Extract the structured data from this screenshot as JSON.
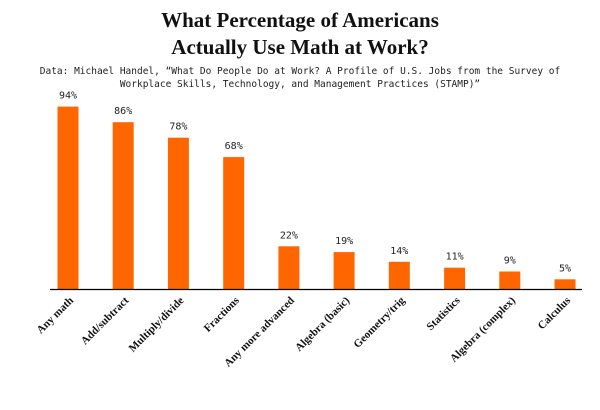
{
  "header": {
    "title_line_1": "What Percentage of Americans",
    "title_line_2": "Actually Use Math at Work?",
    "source_line_1": "Data: Michael Handel, “What Do People Do at Work? A Profile of U.S. Jobs from the Survey of",
    "source_line_2": "Workplace Skills, Technology, and Management Practices (STAMP)”"
  },
  "chart_data": {
    "type": "bar",
    "title": "What Percentage of Americans Actually Use Math at Work?",
    "subtitle": "Data: Michael Handel, “What Do People Do at Work? A Profile of U.S. Jobs from the Survey of Workplace Skills, Technology, and Management Practices (STAMP)”",
    "categories": [
      "Any math",
      "Add/subtract",
      "Multiply/divide",
      "Fractions",
      "Any more advanced",
      "Algebra (basic)",
      "Geometry/trig",
      "Statistics",
      "Algebra (complex)",
      "Calculus"
    ],
    "values": [
      94,
      86,
      78,
      68,
      22,
      19,
      14,
      11,
      9,
      5
    ],
    "value_labels": [
      "94%",
      "86%",
      "78%",
      "68%",
      "22%",
      "19%",
      "14%",
      "11%",
      "9%",
      "5%"
    ],
    "xlabel": "",
    "ylabel": "",
    "ylim": [
      0,
      100
    ],
    "grid": false,
    "bar_color": "#ff6600",
    "axis_color": "#000000"
  }
}
